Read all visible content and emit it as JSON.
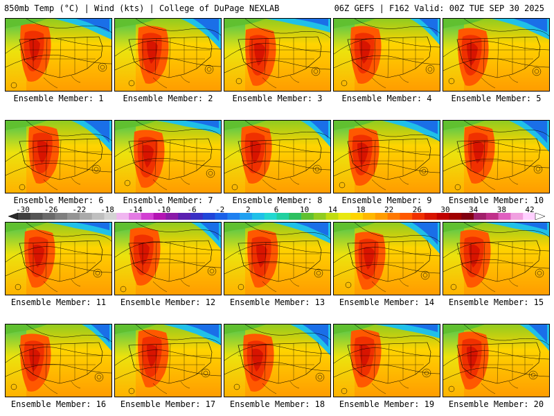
{
  "header": {
    "left": "850mb Temp (°C) | Wind (kts) | College of DuPage NEXLAB",
    "right": "06Z GEFS | F162 Valid: 00Z TUE SEP 30 2025"
  },
  "member_label_prefix": "Ensemble Member: ",
  "members": [
    "1",
    "2",
    "3",
    "4",
    "5",
    "6",
    "7",
    "8",
    "9",
    "10",
    "11",
    "12",
    "13",
    "14",
    "15",
    "16",
    "17",
    "18",
    "19",
    "20"
  ],
  "colorbar": {
    "ticks": [
      "-30",
      "-26",
      "-22",
      "-18",
      "-14",
      "-10",
      "-6",
      "-2",
      "2",
      "6",
      "10",
      "14",
      "18",
      "22",
      "26",
      "30",
      "34",
      "38",
      "42"
    ],
    "colors": [
      "#404040",
      "#555555",
      "#6a6a6a",
      "#7f7f7f",
      "#949494",
      "#aaaaaa",
      "#bfbfbf",
      "#d4d4d4",
      "#f0b6f0",
      "#e37ae3",
      "#d23fd2",
      "#b314b3",
      "#8a1aa8",
      "#5a1fb0",
      "#3a2fc4",
      "#2045d8",
      "#1a60e8",
      "#1e80f0",
      "#20a0f0",
      "#20c0e8",
      "#22d8d0",
      "#20d0a0",
      "#2cc060",
      "#60c030",
      "#90cc20",
      "#c0dc10",
      "#e8e810",
      "#ffd400",
      "#ffb800",
      "#ff9c00",
      "#ff7800",
      "#ff5800",
      "#f03000",
      "#d81400",
      "#c00000",
      "#a00000",
      "#800010",
      "#a0206a",
      "#c0308a",
      "#e060c0",
      "#f0a0e0",
      "#ffd0ff"
    ]
  }
}
